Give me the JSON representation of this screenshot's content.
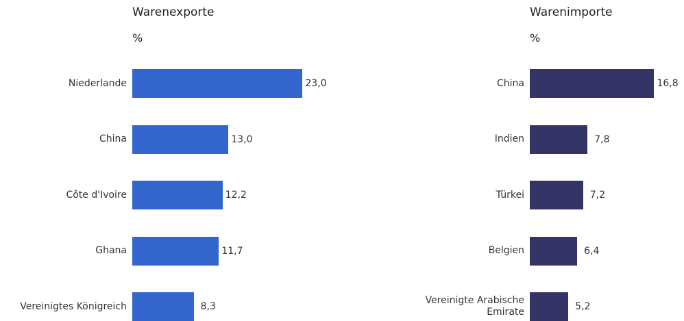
{
  "chart_data": [
    {
      "type": "bar",
      "orientation": "horizontal",
      "title": "Warenexporte",
      "subtitle": "%",
      "categories": [
        "Niederlande",
        "China",
        "Côte d'Ivoire",
        "Ghana",
        "Vereinigtes Königreich"
      ],
      "values": [
        23.0,
        13.0,
        12.2,
        11.7,
        8.3
      ],
      "value_labels": [
        "23,0",
        "13,0",
        "12,2",
        "11,7",
        "8,3"
      ],
      "color": "#3366cc"
    },
    {
      "type": "bar",
      "orientation": "horizontal",
      "title": "Warenimporte",
      "subtitle": "%",
      "categories": [
        "China",
        "Indien",
        "Türkei",
        "Belgien",
        "Vereinigte Arabische Emirate"
      ],
      "values": [
        16.8,
        7.8,
        7.2,
        6.4,
        5.2
      ],
      "value_labels": [
        "16,8",
        "7,8",
        "7,2",
        "6,4",
        "5,2"
      ],
      "color": "#333366"
    }
  ]
}
